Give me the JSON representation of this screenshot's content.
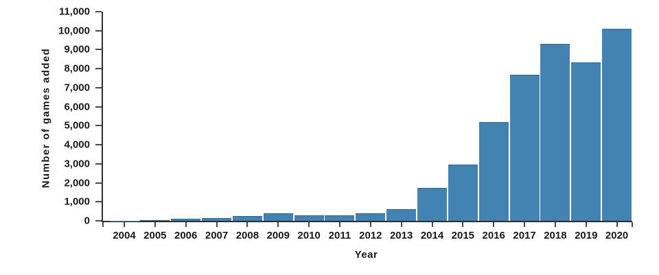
{
  "chart_data": {
    "type": "bar",
    "title": "",
    "xlabel": "Year",
    "ylabel": "Number of games added",
    "categories": [
      "2004",
      "2005",
      "2006",
      "2007",
      "2008",
      "2009",
      "2010",
      "2011",
      "2012",
      "2013",
      "2014",
      "2015",
      "2016",
      "2017",
      "2018",
      "2019",
      "2020"
    ],
    "values": [
      10,
      20,
      110,
      160,
      250,
      380,
      280,
      300,
      400,
      620,
      1740,
      2970,
      5200,
      7680,
      9300,
      8340,
      10100
    ],
    "ylim": [
      0,
      11000
    ],
    "ytick_step": 1000,
    "grid": false,
    "legend": null,
    "colors": {
      "bar_fill": "#4383b4",
      "bar_edge": "#346a9a",
      "axis": "#2e2e2e",
      "tick": "#4a4a4a",
      "text": "#1a1a1a"
    }
  }
}
